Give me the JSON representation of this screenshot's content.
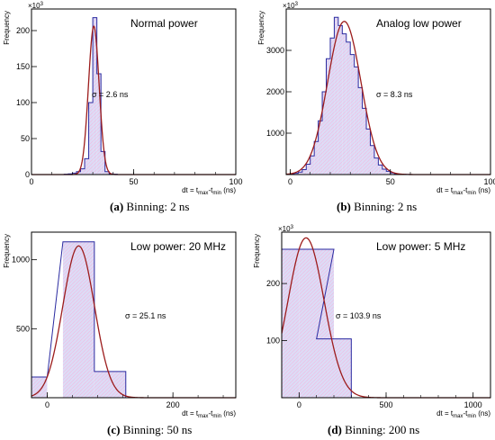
{
  "chart_data": [
    {
      "type": "bar",
      "title": "Normal power",
      "ylabel": "Frequency",
      "xlabel_main": "dt = t",
      "xlabel_sub1": "max",
      "xlabel_mid": "-t",
      "xlabel_sub2": "min",
      "xlabel_unit": " (ns)",
      "multiplier": "×10",
      "multiplier_exp": "3",
      "annotation": "σ = 2.6 ns",
      "xlim": [
        0,
        100
      ],
      "ylim": [
        0,
        230
      ],
      "xticks": [
        0,
        50,
        100
      ],
      "yticks": [
        0,
        50,
        100,
        150,
        200
      ],
      "bin_width": 2,
      "bins_x": [
        16,
        18,
        20,
        22,
        24,
        26,
        28,
        30,
        32,
        34,
        36,
        38,
        40
      ],
      "bins_y": [
        0.5,
        1,
        2,
        4,
        8,
        22,
        100,
        218,
        140,
        32,
        4,
        1,
        0.5
      ],
      "fit": {
        "amp": 206,
        "mu": 30.5,
        "sigma": 2.6
      },
      "caption_label": "(a)",
      "caption_text": " Binning: 2 ns"
    },
    {
      "type": "bar",
      "title": "Analog low power",
      "ylabel": "Frequency",
      "xlabel_main": "dt = t",
      "xlabel_sub1": "max",
      "xlabel_mid": "-t",
      "xlabel_sub2": "min",
      "xlabel_unit": " (ns)",
      "multiplier": "×10",
      "multiplier_exp": "3",
      "annotation": "σ = 8.3 ns",
      "xlim": [
        -2,
        100
      ],
      "ylim": [
        0,
        4000
      ],
      "xticks": [
        0,
        50,
        100
      ],
      "yticks": [
        1000,
        2000,
        3000
      ],
      "bin_width": 2,
      "bins_x": [
        0,
        2,
        4,
        6,
        8,
        10,
        12,
        14,
        16,
        18,
        20,
        22,
        24,
        26,
        28,
        30,
        32,
        34,
        36,
        38,
        40,
        42,
        44,
        46,
        48,
        50,
        52,
        54,
        56,
        58
      ],
      "bins_y": [
        10,
        30,
        60,
        120,
        250,
        450,
        800,
        1300,
        2000,
        2800,
        3300,
        3800,
        3600,
        3400,
        3200,
        2900,
        2600,
        2100,
        1600,
        1100,
        700,
        400,
        230,
        130,
        80,
        40,
        20,
        10,
        5,
        2
      ],
      "fit": {
        "amp": 3700,
        "mu": 27,
        "sigma": 8.3
      },
      "caption_label": "(b)",
      "caption_text": " Binning: 2 ns"
    },
    {
      "type": "bar",
      "title": "Low power: 20 MHz",
      "ylabel": "Frequency",
      "xlabel_main": "dt = t",
      "xlabel_sub1": "max",
      "xlabel_mid": "-t",
      "xlabel_sub2": "min",
      "xlabel_unit": " (ns)",
      "multiplier": "",
      "multiplier_exp": "",
      "annotation": "σ = 25.1 ns",
      "xlim": [
        -25,
        300
      ],
      "ylim": [
        0,
        1200
      ],
      "xticks": [
        0,
        200
      ],
      "yticks": [
        500,
        1000
      ],
      "bin_width": 50,
      "bins_x": [
        -50,
        25,
        75
      ],
      "bins_y": [
        150,
        1130,
        190
      ],
      "fit": {
        "amp": 1100,
        "mu": 50,
        "sigma": 25.1
      },
      "caption_label": "(c)",
      "caption_text": " Binning: 50 ns"
    },
    {
      "type": "bar",
      "title": "Low power: 5 MHz",
      "ylabel": "Frequency",
      "xlabel_main": "dt = t",
      "xlabel_sub1": "max",
      "xlabel_mid": "-t",
      "xlabel_sub2": "min",
      "xlabel_unit": " (ns)",
      "multiplier": "×10",
      "multiplier_exp": "3",
      "annotation": "σ = 103.9 ns",
      "xlim": [
        -100,
        1100
      ],
      "ylim": [
        0,
        290
      ],
      "xticks": [
        0,
        500,
        1000
      ],
      "yticks": [
        100,
        200
      ],
      "bin_width": 200,
      "bins_x": [
        -200,
        0,
        100
      ],
      "bins_y": [
        260,
        260,
        103
      ],
      "fit": {
        "amp": 280,
        "mu": 40,
        "sigma": 103.9
      },
      "caption_label": "(d)",
      "caption_text": " Binning: 200 ns"
    }
  ]
}
